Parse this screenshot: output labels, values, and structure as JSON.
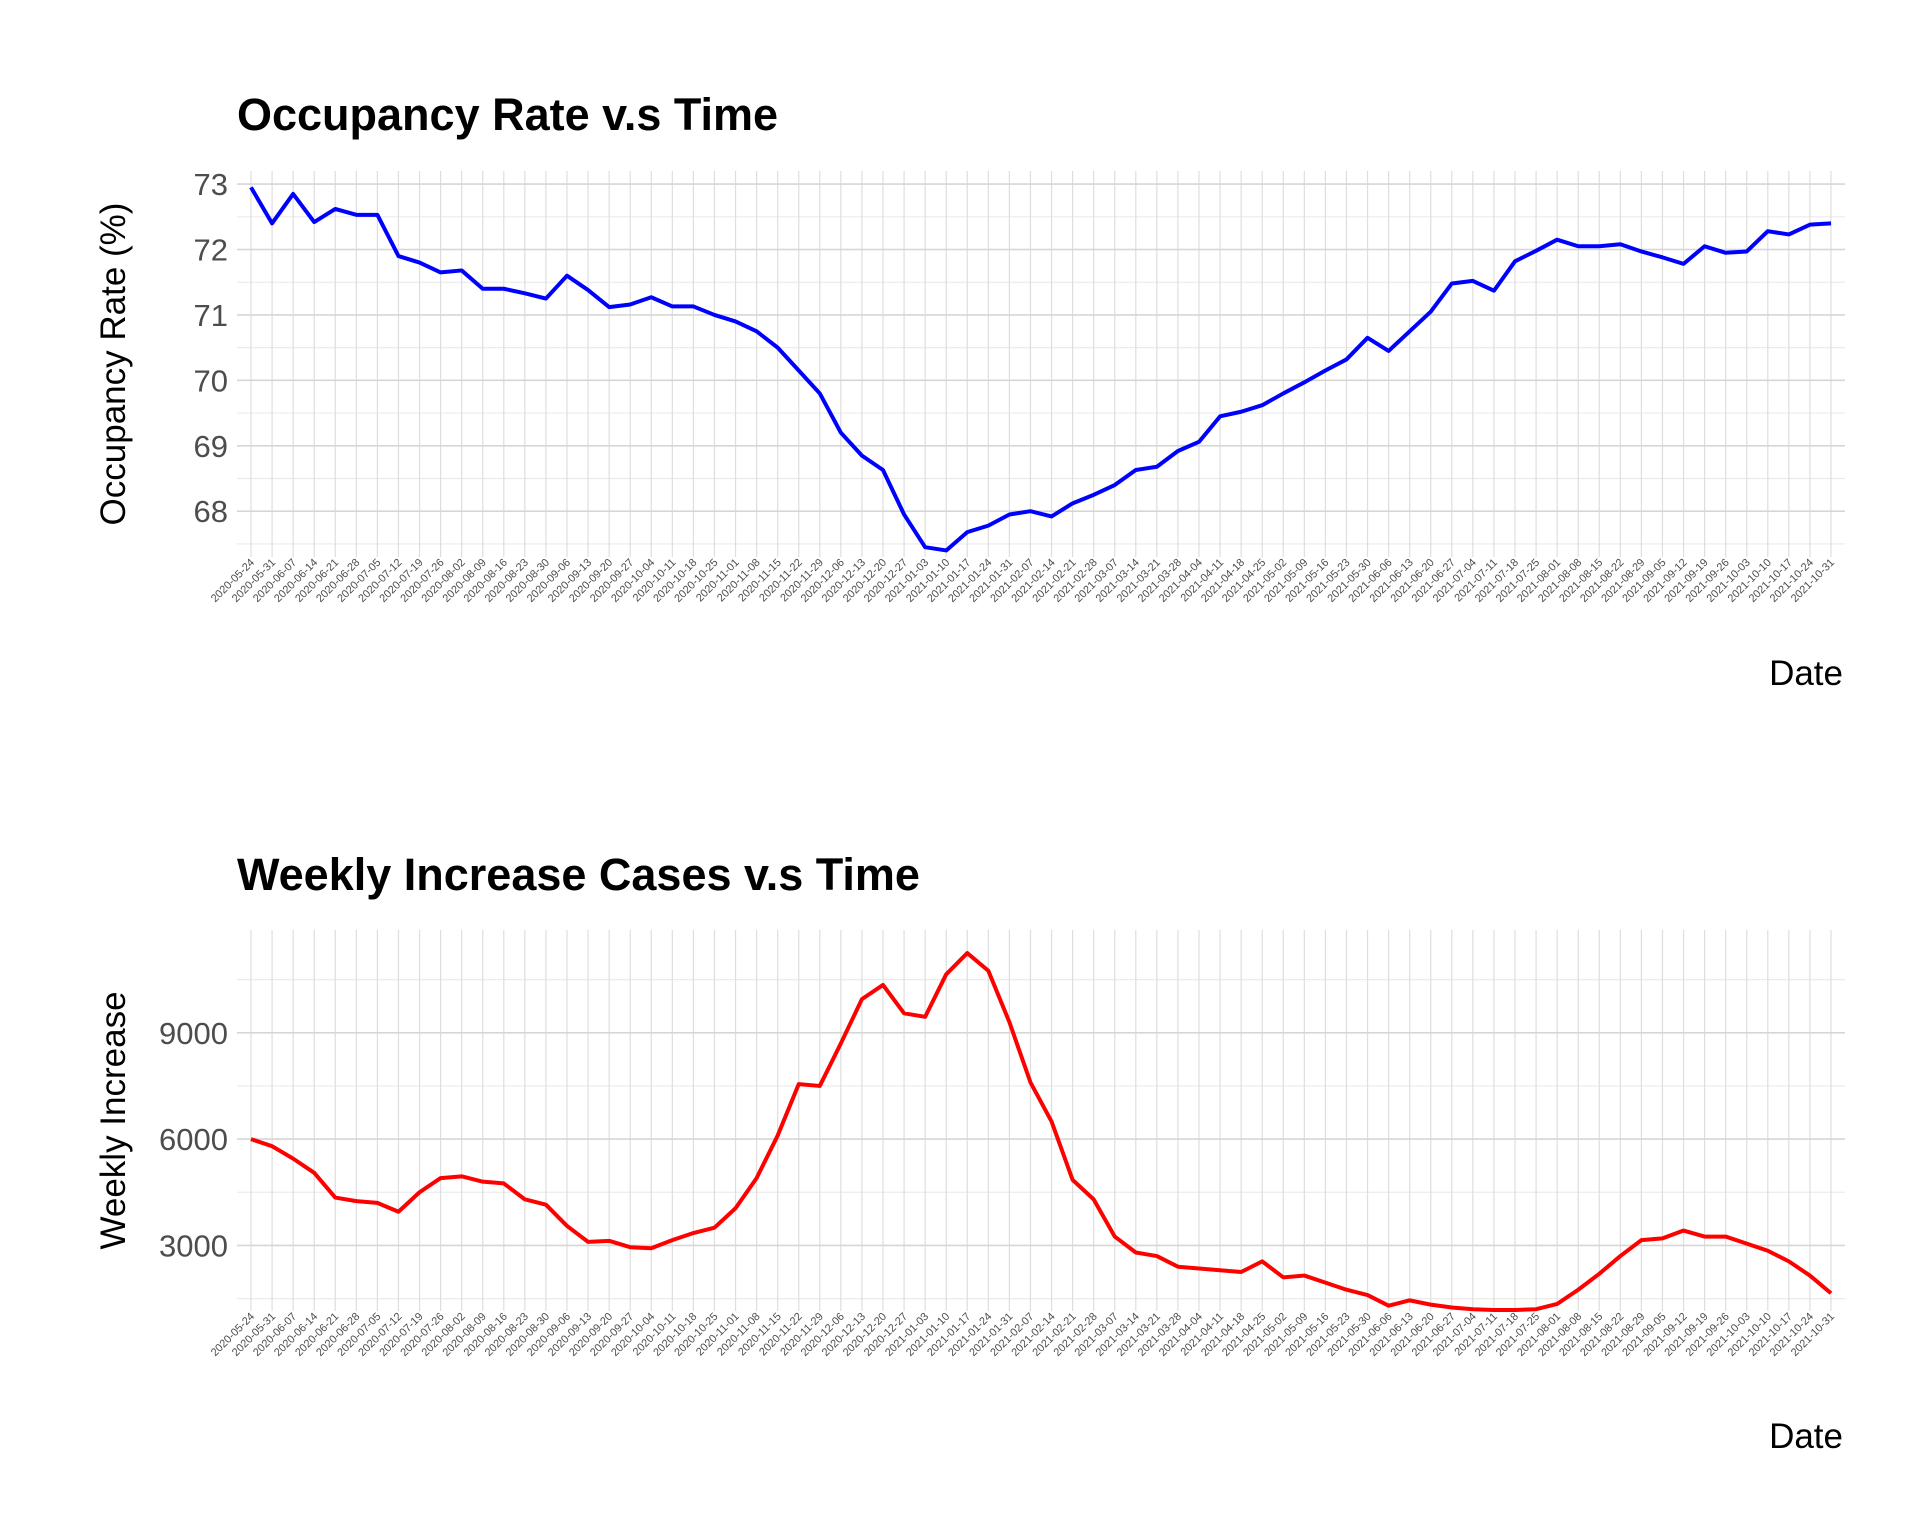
{
  "chart_data": [
    {
      "type": "line",
      "title": "Occupancy Rate v.s Time",
      "x_label": "Date",
      "y_label": "Occupancy Rate (%)",
      "categories": [
        "2020-05-24",
        "2020-05-31",
        "2020-06-07",
        "2020-06-14",
        "2020-06-21",
        "2020-06-28",
        "2020-07-05",
        "2020-07-12",
        "2020-07-19",
        "2020-07-26",
        "2020-08-02",
        "2020-08-09",
        "2020-08-16",
        "2020-08-23",
        "2020-08-30",
        "2020-09-06",
        "2020-09-13",
        "2020-09-20",
        "2020-09-27",
        "2020-10-04",
        "2020-10-11",
        "2020-10-18",
        "2020-10-25",
        "2020-11-01",
        "2020-11-08",
        "2020-11-15",
        "2020-11-22",
        "2020-11-29",
        "2020-12-06",
        "2020-12-13",
        "2020-12-20",
        "2020-12-27",
        "2021-01-03",
        "2021-01-10",
        "2021-01-17",
        "2021-01-24",
        "2021-01-31",
        "2021-02-07",
        "2021-02-14",
        "2021-02-21",
        "2021-02-28",
        "2021-03-07",
        "2021-03-14",
        "2021-03-21",
        "2021-03-28",
        "2021-04-04",
        "2021-04-11",
        "2021-04-18",
        "2021-04-25",
        "2021-05-02",
        "2021-05-09",
        "2021-05-16",
        "2021-05-23",
        "2021-05-30",
        "2021-06-06",
        "2021-06-13",
        "2021-06-20",
        "2021-06-27",
        "2021-07-04",
        "2021-07-11",
        "2021-07-18",
        "2021-07-25",
        "2021-08-01",
        "2021-08-08",
        "2021-08-15",
        "2021-08-22",
        "2021-08-29",
        "2021-09-05",
        "2021-09-12",
        "2021-09-19",
        "2021-09-26",
        "2021-10-03",
        "2021-10-10",
        "2021-10-17",
        "2021-10-24",
        "2021-10-31"
      ],
      "series": [
        {
          "color": "#0000ff",
          "values": [
            72.95,
            72.4,
            72.85,
            72.42,
            72.62,
            72.53,
            72.53,
            71.9,
            71.8,
            71.65,
            71.68,
            71.4,
            71.4,
            71.33,
            71.25,
            71.6,
            71.38,
            71.12,
            71.16,
            71.27,
            71.13,
            71.13,
            71.0,
            70.9,
            70.75,
            70.5,
            70.15,
            69.8,
            69.2,
            68.85,
            68.63,
            67.95,
            67.45,
            67.4,
            67.68,
            67.78,
            67.95,
            68.0,
            67.92,
            68.12,
            68.25,
            68.4,
            68.63,
            68.68,
            68.92,
            69.06,
            69.45,
            69.52,
            69.62,
            69.8,
            69.97,
            70.15,
            70.32,
            70.65,
            70.45,
            70.75,
            71.05,
            71.48,
            71.52,
            71.37,
            71.82,
            71.98,
            72.15,
            72.05,
            72.05,
            72.08,
            71.97,
            71.88,
            71.78,
            72.05,
            71.95,
            71.97,
            72.28,
            72.23,
            72.38,
            72.4
          ]
        }
      ],
      "ylim": [
        67.3,
        73.2
      ],
      "yticks": [
        68,
        69,
        70,
        71,
        72,
        73
      ],
      "grid": true
    },
    {
      "type": "line",
      "title": "Weekly Increase Cases v.s Time",
      "x_label": "Date",
      "y_label": "Weekly Increase",
      "categories": [
        "2020-05-24",
        "2020-05-31",
        "2020-06-07",
        "2020-06-14",
        "2020-06-21",
        "2020-06-28",
        "2020-07-05",
        "2020-07-12",
        "2020-07-19",
        "2020-07-26",
        "2020-08-02",
        "2020-08-09",
        "2020-08-16",
        "2020-08-23",
        "2020-08-30",
        "2020-09-06",
        "2020-09-13",
        "2020-09-20",
        "2020-09-27",
        "2020-10-04",
        "2020-10-11",
        "2020-10-18",
        "2020-10-25",
        "2020-11-01",
        "2020-11-08",
        "2020-11-15",
        "2020-11-22",
        "2020-11-29",
        "2020-12-06",
        "2020-12-13",
        "2020-12-20",
        "2020-12-27",
        "2021-01-03",
        "2021-01-10",
        "2021-01-17",
        "2021-01-24",
        "2021-01-31",
        "2021-02-07",
        "2021-02-14",
        "2021-02-21",
        "2021-02-28",
        "2021-03-07",
        "2021-03-14",
        "2021-03-21",
        "2021-03-28",
        "2021-04-04",
        "2021-04-11",
        "2021-04-18",
        "2021-04-25",
        "2021-05-02",
        "2021-05-09",
        "2021-05-16",
        "2021-05-23",
        "2021-05-30",
        "2021-06-06",
        "2021-06-13",
        "2021-06-20",
        "2021-06-27",
        "2021-07-04",
        "2021-07-11",
        "2021-07-18",
        "2021-07-25",
        "2021-08-01",
        "2021-08-08",
        "2021-08-15",
        "2021-08-22",
        "2021-08-29",
        "2021-09-05",
        "2021-09-12",
        "2021-09-19",
        "2021-09-26",
        "2021-10-03",
        "2021-10-10",
        "2021-10-17",
        "2021-10-24",
        "2021-10-31"
      ],
      "series": [
        {
          "color": "#ff0000",
          "values": [
            6000,
            5800,
            5450,
            5050,
            4350,
            4250,
            4200,
            3950,
            4500,
            4900,
            4950,
            4800,
            4750,
            4300,
            4150,
            3550,
            3100,
            3130,
            2950,
            2920,
            3150,
            3350,
            3500,
            4050,
            4900,
            6100,
            7550,
            7500,
            8700,
            9950,
            10350,
            9550,
            9450,
            10650,
            11250,
            10750,
            9300,
            7600,
            6500,
            4850,
            4300,
            3250,
            2800,
            2700,
            2400,
            2350,
            2300,
            2250,
            2550,
            2100,
            2150,
            1950,
            1750,
            1600,
            1300,
            1450,
            1330,
            1250,
            1200,
            1180,
            1180,
            1200,
            1350,
            1750,
            2200,
            2700,
            3150,
            3200,
            3420,
            3250,
            3250,
            3050,
            2850,
            2550,
            2150,
            1650
          ]
        }
      ],
      "ylim": [
        1150,
        11900
      ],
      "yticks": [
        3000,
        6000,
        9000
      ],
      "grid": true
    }
  ]
}
